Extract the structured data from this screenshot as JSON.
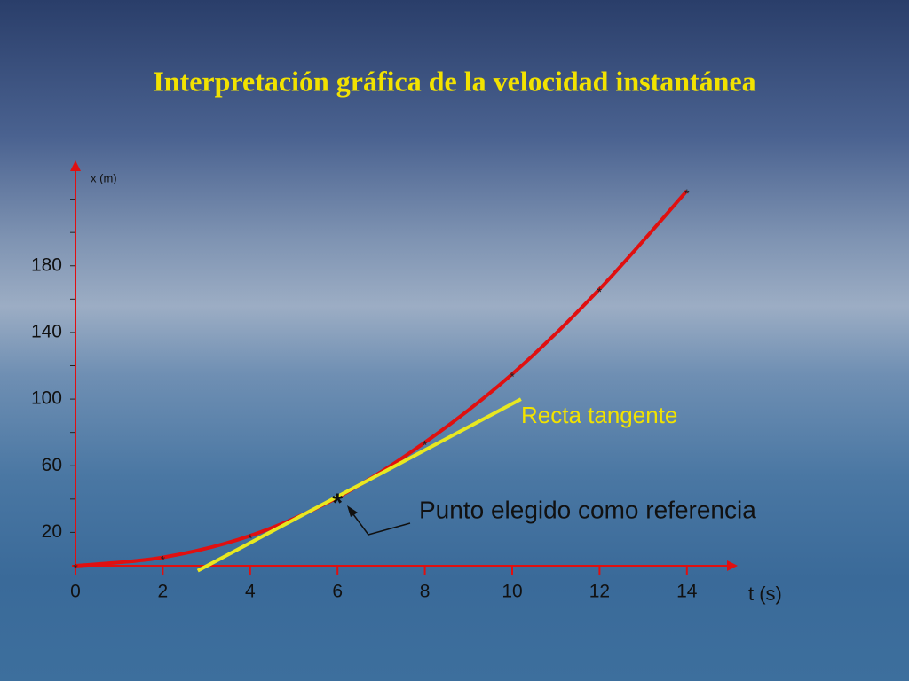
{
  "chart_data": {
    "type": "line",
    "title": "Interpretación gráfica de la velocidad instantánea",
    "y_label": "x (m)",
    "x_label": "t (s)",
    "annotations": [
      "Recta tangente",
      "Punto elegido como referencia"
    ],
    "series": [
      {
        "color": "#e01010",
        "x": [
          0,
          2,
          4,
          6,
          8,
          10,
          12,
          14
        ],
        "values": [
          0,
          5,
          18,
          41,
          74,
          115,
          166,
          225
        ]
      },
      {
        "color": "#e8e820",
        "x": [
          2.8,
          10.2
        ],
        "values": [
          -3,
          100
        ]
      }
    ],
    "reference_point": {
      "x": 6,
      "value": 41
    },
    "xlim": [
      0,
      15
    ],
    "ylim": [
      0,
      240
    ],
    "xticks": [
      0,
      2,
      4,
      6,
      8,
      10,
      12,
      14
    ],
    "yticks": [
      20,
      60,
      100,
      140,
      180
    ],
    "minor_yticks": [
      20,
      40,
      60,
      80,
      100,
      120,
      140,
      160,
      180,
      200,
      220
    ],
    "axis_color": "#e01010"
  }
}
